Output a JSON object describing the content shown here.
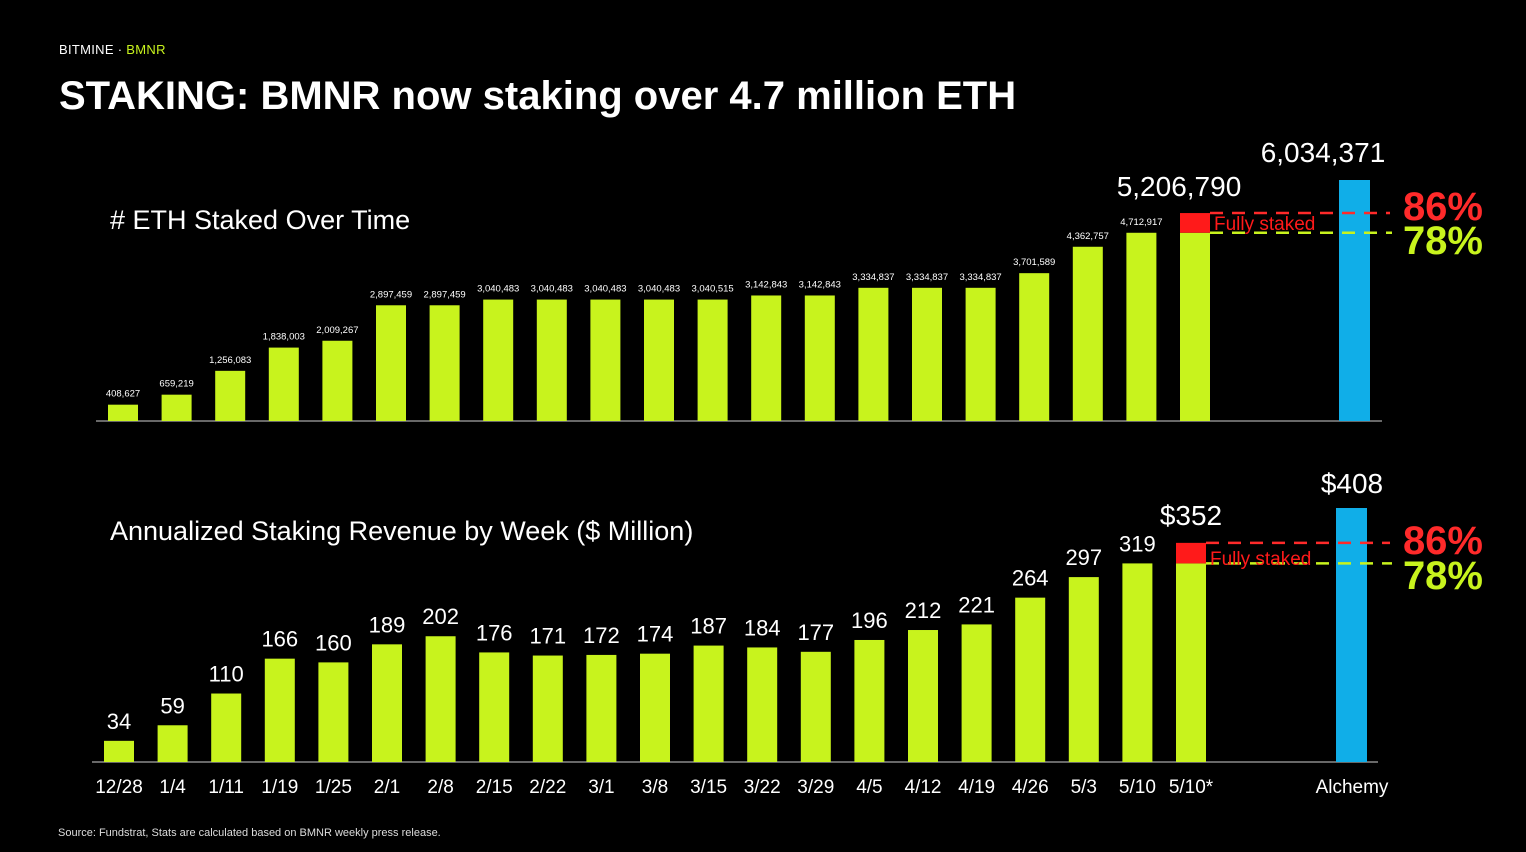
{
  "brand": {
    "company": "BITMINE",
    "separator": " · ",
    "ticker": "BMNR"
  },
  "title": "STAKING: BMNR now staking over 4.7 million ETH",
  "source": "Source: Fundstrat, Stats are calculated based on BMNR weekly press release.",
  "colors": {
    "bar": "#c8f31d",
    "fully_staked": "#ff1a1a",
    "alchemy": "#10aee8",
    "pct86": "#ff2a2a",
    "pct78": "#c8f31d"
  },
  "chart_data": [
    {
      "type": "bar",
      "title": "# ETH Staked Over Time",
      "categories": [
        "12/28",
        "1/4",
        "1/11",
        "1/19",
        "1/25",
        "2/1",
        "2/8",
        "2/15",
        "2/22",
        "3/1",
        "3/8",
        "3/15",
        "3/22",
        "3/29",
        "4/5",
        "4/12",
        "4/19",
        "4/26",
        "5/3",
        "5/10",
        "5/10*"
      ],
      "values": [
        408627,
        659219,
        1256083,
        1838003,
        2009267,
        2897459,
        2897459,
        3040483,
        3040483,
        3040483,
        3040483,
        3040515,
        3142843,
        3142843,
        3334837,
        3334837,
        3334837,
        3701589,
        4362757,
        4712917,
        4712917
      ],
      "value_labels": [
        "408,627",
        "659,219",
        "1,256,083",
        "1,838,003",
        "2,009,267",
        "2,897,459",
        "2,897,459",
        "3,040,483",
        "3,040,483",
        "3,040,483",
        "3,040,483",
        "3,040,515",
        "3,142,843",
        "3,142,843",
        "3,334,837",
        "3,334,837",
        "3,334,837",
        "3,701,589",
        "4,362,757",
        "4,712,917",
        ""
      ],
      "fully_staked_value": 5206790,
      "fully_staked_label": "5,206,790",
      "fully_staked_text": "Fully staked",
      "alchemy_label": "Alchemy",
      "alchemy_value": 6034371,
      "alchemy_value_label": "6,034,371",
      "pct_high": "86%",
      "pct_low": "78%"
    },
    {
      "type": "bar",
      "title": "Annualized Staking Revenue by Week ($ Million)",
      "categories": [
        "12/28",
        "1/4",
        "1/11",
        "1/19",
        "1/25",
        "2/1",
        "2/8",
        "2/15",
        "2/22",
        "3/1",
        "3/8",
        "3/15",
        "3/22",
        "3/29",
        "4/5",
        "4/12",
        "4/19",
        "4/26",
        "5/3",
        "5/10",
        "5/10*"
      ],
      "values": [
        34,
        59,
        110,
        166,
        160,
        189,
        202,
        176,
        171,
        172,
        174,
        187,
        184,
        177,
        196,
        212,
        221,
        264,
        297,
        319,
        319
      ],
      "value_labels": [
        "34",
        "59",
        "110",
        "166",
        "160",
        "189",
        "202",
        "176",
        "171",
        "172",
        "174",
        "187",
        "184",
        "177",
        "196",
        "212",
        "221",
        "264",
        "297",
        "319",
        ""
      ],
      "fully_staked_value": 352,
      "fully_staked_label": "$352",
      "fully_staked_text": "Fully staked",
      "alchemy_label": "Alchemy",
      "alchemy_value": 408,
      "alchemy_value_label": "$408",
      "pct_high": "86%",
      "pct_low": "78%"
    }
  ]
}
